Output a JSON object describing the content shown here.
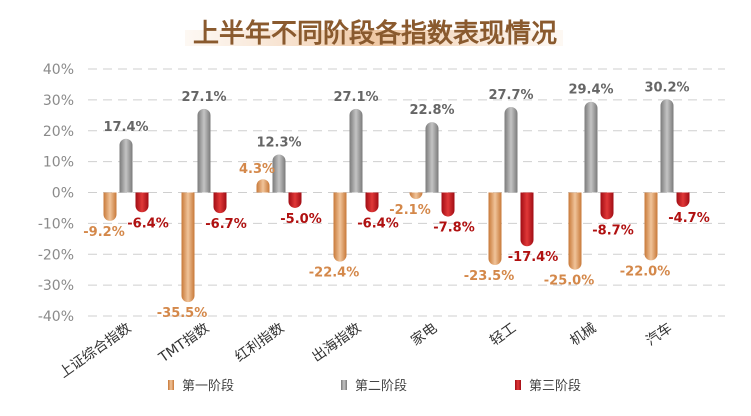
{
  "chart_data": {
    "type": "bar",
    "title": "上半年不同阶段各指数表现情况",
    "categories": [
      "上证综合指数",
      "TMT指数",
      "红利指数",
      "出海指数",
      "家电",
      "轻工",
      "机械",
      "汽车"
    ],
    "y_ticks": [
      "40%",
      "30%",
      "20%",
      "10%",
      "0%",
      "-10%",
      "-20%",
      "-30%",
      "-40%"
    ],
    "ylim": [
      -40,
      40
    ],
    "grid": true,
    "legend_position": "bottom",
    "series": [
      {
        "name": "第一阶段",
        "color": "#e0a070",
        "label_color": "#d4884a",
        "values": [
          -9.2,
          -35.5,
          4.3,
          -22.4,
          -2.1,
          -23.5,
          -25.0,
          -22.0
        ],
        "labels": [
          "-9.2%",
          "-35.5%",
          "4.3%",
          "-22.4%",
          "-2.1%",
          "-23.5%",
          "-25.0%",
          "-22.0%"
        ]
      },
      {
        "name": "第二阶段",
        "color": "#8c8c8c",
        "label_color": "#666666",
        "values": [
          17.4,
          27.1,
          12.3,
          27.1,
          22.8,
          27.7,
          29.4,
          30.2
        ],
        "labels": [
          "17.4%",
          "27.1%",
          "12.3%",
          "27.1%",
          "22.8%",
          "27.7%",
          "29.4%",
          "30.2%"
        ]
      },
      {
        "name": "第三阶段",
        "color": "#c0141c",
        "label_color": "#b01010",
        "values": [
          -6.4,
          -6.7,
          -5.0,
          -6.4,
          -7.8,
          -17.4,
          -8.7,
          -4.7
        ],
        "labels": [
          "-6.4%",
          "-6.7%",
          "-5.0%",
          "-6.4%",
          "-7.8%",
          "-17.4%",
          "-8.7%",
          "-4.7%"
        ]
      }
    ]
  }
}
